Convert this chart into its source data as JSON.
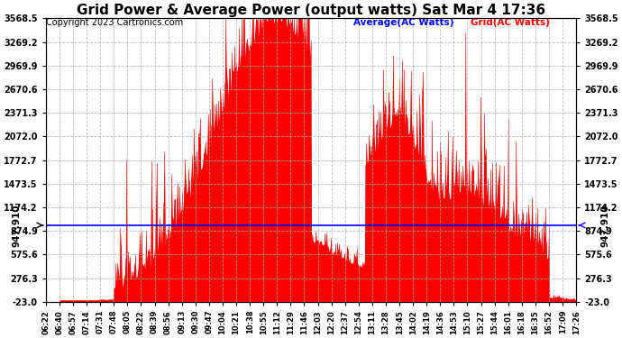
{
  "title": "Grid Power & Average Power (output watts) Sat Mar 4 17:36",
  "copyright": "Copyright 2023 Cartronics.com",
  "average_value": 947.91,
  "average_label": "947.910",
  "legend_average": "Average(AC Watts)",
  "legend_grid": "Grid(AC Watts)",
  "yticks": [
    -23.0,
    276.3,
    575.6,
    874.9,
    1174.2,
    1473.5,
    1772.7,
    2072.0,
    2371.3,
    2670.6,
    2969.9,
    3269.2,
    3568.5
  ],
  "ymin": -23.0,
  "ymax": 3568.5,
  "background_color": "#ffffff",
  "grid_color": "#aaaaaa",
  "fill_color": "#ff0000",
  "average_line_color": "#0000ff",
  "title_fontsize": 11,
  "copyright_fontsize": 7,
  "annotation_fontsize": 8,
  "xtick_labels": [
    "06:22",
    "06:40",
    "06:57",
    "07:14",
    "07:31",
    "07:48",
    "08:05",
    "08:22",
    "08:39",
    "08:56",
    "09:13",
    "09:30",
    "09:47",
    "10:04",
    "10:21",
    "10:38",
    "10:55",
    "11:12",
    "11:29",
    "11:46",
    "12:03",
    "12:20",
    "12:37",
    "12:54",
    "13:11",
    "13:28",
    "13:45",
    "14:02",
    "14:19",
    "14:36",
    "14:53",
    "15:10",
    "15:27",
    "15:44",
    "16:01",
    "16:18",
    "16:35",
    "16:52",
    "17:09",
    "17:26"
  ]
}
